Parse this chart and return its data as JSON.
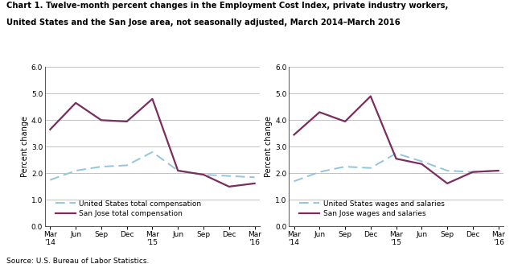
{
  "title_line1": "Chart 1. Twelve-month percent changes in the Employment Cost Index, private industry workers,",
  "title_line2": "United States and the San Jose area, not seasonally adjusted, March 2014–March 2016",
  "ylabel": "Percent change",
  "source": "Source: U.S. Bureau of Labor Statistics.",
  "x_positions": [
    0,
    1,
    2,
    3,
    4,
    5,
    6,
    7,
    8
  ],
  "x_labels": [
    "Mar\n'14",
    "Jun",
    "Sep",
    "Dec",
    "Mar\n'15",
    "Jun",
    "Sep",
    "Dec",
    "Mar\n'16"
  ],
  "ylim": [
    0.0,
    6.0
  ],
  "yticks": [
    0.0,
    1.0,
    2.0,
    3.0,
    4.0,
    5.0,
    6.0
  ],
  "left_chart": {
    "us_label": "United States total compensation",
    "sj_label": "San Jose total compensation",
    "us_values": [
      1.75,
      2.1,
      2.25,
      2.3,
      2.8,
      2.1,
      1.95,
      1.9,
      1.85
    ],
    "sj_values": [
      3.65,
      4.65,
      4.0,
      3.95,
      4.8,
      2.1,
      1.95,
      1.5,
      1.62
    ]
  },
  "right_chart": {
    "us_label": "United States wages and salaries",
    "sj_label": "San Jose wages and salaries",
    "us_values": [
      1.7,
      2.05,
      2.25,
      2.2,
      2.75,
      2.45,
      2.1,
      2.05,
      2.1
    ],
    "sj_values": [
      3.45,
      4.3,
      3.95,
      4.9,
      2.55,
      2.35,
      1.62,
      2.05,
      2.1
    ]
  },
  "us_color": "#92c5de",
  "sj_color": "#7b2d5e",
  "background_color": "#ffffff",
  "grid_color": "#b8b8b8"
}
